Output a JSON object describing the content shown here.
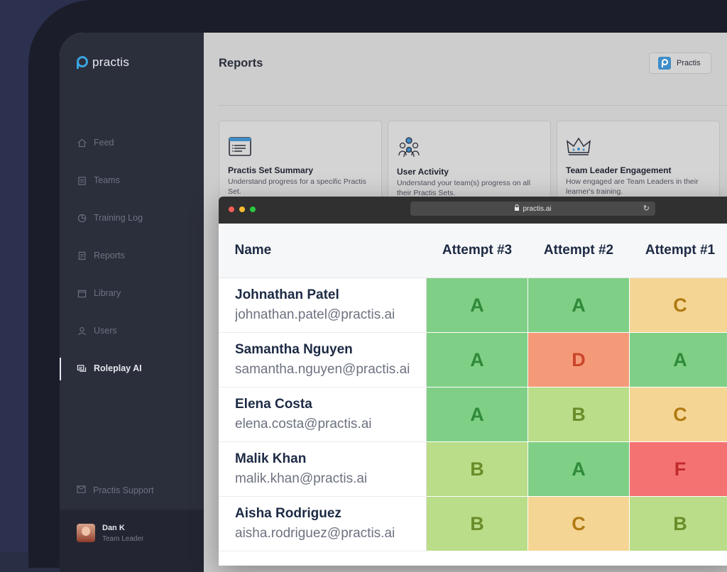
{
  "sidebar": {
    "logo": "practis",
    "items": [
      {
        "label": "Feed",
        "icon": "home-icon"
      },
      {
        "label": "Teams",
        "icon": "clipboard-icon"
      },
      {
        "label": "Training Log",
        "icon": "pie-icon"
      },
      {
        "label": "Reports",
        "icon": "report-icon"
      },
      {
        "label": "Library",
        "icon": "library-icon"
      },
      {
        "label": "Users",
        "icon": "user-icon"
      },
      {
        "label": "Roleplay AI",
        "icon": "chat-icon",
        "active": true
      }
    ],
    "support": "Practis Support",
    "user": {
      "name": "Dan K",
      "role": "Team Leader"
    }
  },
  "header": {
    "title": "Reports",
    "account_button": "Practis"
  },
  "cards": [
    {
      "title": "Practis Set Summary",
      "desc": "Understand progress for a specific Practis Set."
    },
    {
      "title": "User Activity",
      "desc": "Understand your team(s) progress on all their Practis Sets."
    },
    {
      "title": "Team Leader Engagement",
      "desc": "How engaged are Team Leaders in their learner's training."
    }
  ],
  "browser": {
    "url": "practis.ai"
  },
  "table": {
    "columns": [
      "Name",
      "Attempt #3",
      "Attempt #2",
      "Attempt #1"
    ],
    "rows": [
      {
        "name": "Johnathan Patel",
        "email": "johnathan.patel@practis.ai",
        "grades": [
          "A",
          "A",
          "C"
        ]
      },
      {
        "name": "Samantha Nguyen",
        "email": "samantha.nguyen@practis.ai",
        "grades": [
          "A",
          "D",
          "A"
        ]
      },
      {
        "name": "Elena Costa",
        "email": "elena.costa@practis.ai",
        "grades": [
          "A",
          "B",
          "C"
        ]
      },
      {
        "name": "Malik Khan",
        "email": "malik.khan@practis.ai",
        "grades": [
          "B",
          "A",
          "F"
        ]
      },
      {
        "name": "Aisha Rodriguez",
        "email": "aisha.rodriguez@practis.ai",
        "grades": [
          "B",
          "C",
          "B"
        ]
      }
    ]
  },
  "colors": {
    "A": "#80cf86",
    "B": "#b9dd88",
    "C": "#f5d594",
    "D": "#f59a79",
    "F": "#f47272"
  }
}
